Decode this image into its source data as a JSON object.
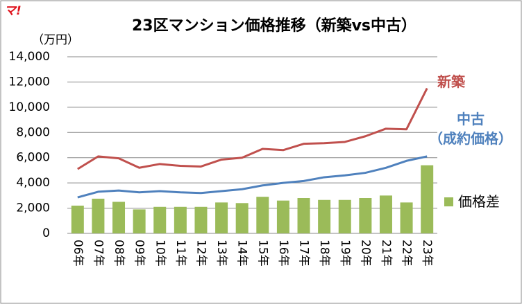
{
  "logo": "マ!",
  "chart_data": {
    "type": "combo",
    "title": "23区マンション価格推移（新築vs中古）",
    "y_label": "（万円）",
    "categories": [
      "06年",
      "07年",
      "08年",
      "09年",
      "10年",
      "11年",
      "12年",
      "13年",
      "14年",
      "15年",
      "16年",
      "17年",
      "18年",
      "19年",
      "20年",
      "21年",
      "22年",
      "23年"
    ],
    "series": [
      {
        "name": "価格差",
        "type": "bar",
        "color": "#9bbb59",
        "values": [
          2200,
          2750,
          2500,
          1900,
          2100,
          2100,
          2100,
          2450,
          2400,
          2900,
          2600,
          2800,
          2650,
          2650,
          2800,
          3000,
          2450,
          5400
        ]
      },
      {
        "name": "新築",
        "type": "line",
        "color": "#c0504d",
        "values": [
          5100,
          6100,
          5950,
          5200,
          5500,
          5350,
          5300,
          5850,
          6000,
          6700,
          6600,
          7100,
          7150,
          7250,
          7700,
          8300,
          8250,
          11500
        ]
      },
      {
        "name": "中古\n（成約価格）",
        "type": "line",
        "color": "#4f81bd",
        "values": [
          2850,
          3300,
          3400,
          3250,
          3350,
          3250,
          3200,
          3350,
          3500,
          3800,
          4000,
          4150,
          4450,
          4600,
          4800,
          5200,
          5750,
          6100
        ]
      }
    ],
    "ylim": [
      0,
      14000
    ],
    "yticks": [
      0,
      {
        "value": 2000,
        "label": "2,000"
      },
      {
        "value": 4000,
        "label": "4,000"
      },
      {
        "value": 6000,
        "label": "6,000"
      },
      {
        "value": 8000,
        "label": "8,000"
      },
      {
        "value": 10000,
        "label": "10,000"
      },
      {
        "value": 12000,
        "label": "12,000"
      },
      {
        "value": 14000,
        "label": "14,000"
      }
    ],
    "grid": true
  }
}
